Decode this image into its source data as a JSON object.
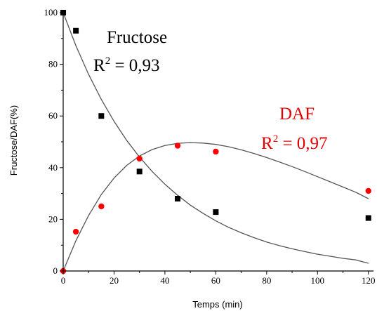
{
  "chart_data": {
    "type": "scatter",
    "xlabel": "Temps  (min)",
    "ylabel": "Fructose/DAF(%)",
    "xlim": [
      0,
      122
    ],
    "ylim": [
      0,
      100
    ],
    "x_ticks": [
      0,
      20,
      40,
      60,
      80,
      100,
      120
    ],
    "y_ticks": [
      0,
      20,
      40,
      60,
      80,
      100
    ],
    "series": [
      {
        "marker": "square",
        "color": "#000000",
        "x": [
          0,
          5,
          15,
          30,
          45,
          60,
          120
        ],
        "y": [
          100,
          93,
          60,
          38.5,
          28,
          22.8,
          20.5
        ]
      },
      {
        "marker": "circle",
        "color": "#ff0000",
        "x": [
          0,
          5,
          15,
          30,
          45,
          60,
          120
        ],
        "y": [
          0,
          15.2,
          25,
          43.5,
          48.5,
          46.2,
          31
        ]
      }
    ],
    "fits": [
      {
        "color": "#555555",
        "x": [
          0,
          5,
          10,
          15,
          20,
          25,
          30,
          35,
          40,
          45,
          50,
          55,
          60,
          65,
          70,
          75,
          80,
          85,
          90,
          95,
          100,
          105,
          110,
          115,
          120
        ],
        "y": [
          100,
          87.2,
          76.1,
          66.4,
          57.9,
          50.5,
          44.1,
          38.5,
          33.6,
          29.3,
          25.5,
          22.3,
          19.4,
          16.9,
          14.8,
          12.9,
          11.2,
          9.8,
          8.6,
          7.5,
          6.5,
          5.7,
          4.9,
          4.3,
          3.0
        ]
      },
      {
        "color": "#555555",
        "x": [
          0,
          5,
          10,
          15,
          20,
          25,
          30,
          35,
          40,
          45,
          50,
          55,
          60,
          65,
          70,
          75,
          80,
          85,
          90,
          95,
          100,
          105,
          110,
          115,
          120
        ],
        "y": [
          0,
          11.7,
          21.5,
          29.6,
          36.0,
          40.9,
          44.5,
          47.0,
          48.6,
          49.4,
          49.7,
          49.5,
          49.0,
          48.1,
          46.9,
          45.5,
          43.9,
          42.2,
          40.4,
          38.5,
          36.5,
          34.5,
          32.5,
          30.5,
          28.0
        ]
      }
    ],
    "annotations": [
      {
        "name": "Fructose",
        "r2": "0,93",
        "color": "#000000"
      },
      {
        "name": "DAF",
        "r2": "0,97",
        "color": "#e60000"
      }
    ]
  }
}
